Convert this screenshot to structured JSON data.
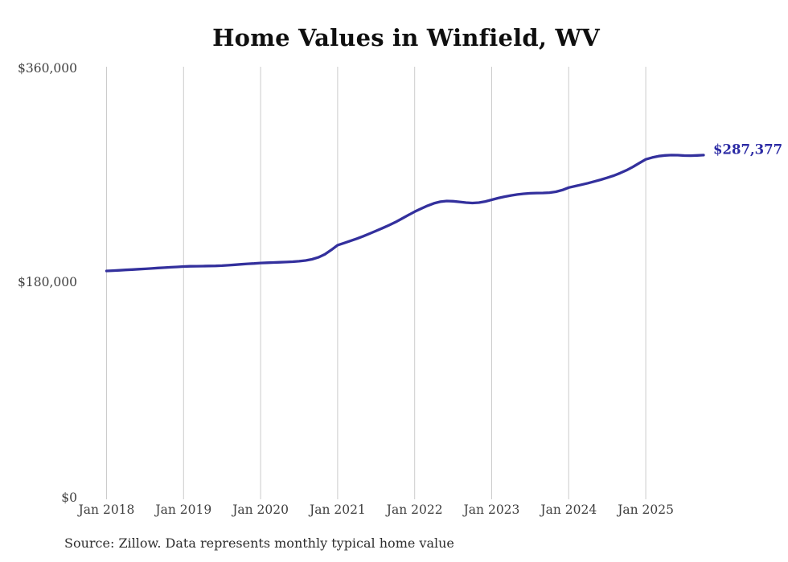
{
  "title": "Home Values in Winfield, WV",
  "source_note": "Source: Zillow. Data represents monthly typical home value",
  "end_label": "$287,377",
  "colors": {
    "line": "#33309d",
    "end_label_text": "#2b2aa4",
    "gridline": "#cccccc",
    "title_text": "#0f0f0f",
    "axis_label_text": "#3f3f3f",
    "source_text": "#2e2e2e",
    "background": "#ffffff"
  },
  "chart_data": {
    "type": "line",
    "title": "Home Values in Winfield, WV",
    "xlabel": "",
    "ylabel": "",
    "ylim": [
      0,
      360000
    ],
    "grid": "vertical-only",
    "legend": "none",
    "frequency": "monthly",
    "x_start": "Jan 2018",
    "x_end": "Oct 2025",
    "x_tick_labels": [
      "Jan 2018",
      "Jan 2019",
      "Jan 2020",
      "Jan 2021",
      "Jan 2022",
      "Jan 2023",
      "Jan 2024",
      "Jan 2025"
    ],
    "y_tick_labels": [
      "$360,000",
      "$180,000",
      "$0"
    ],
    "y_tick_values": [
      360000,
      180000,
      0
    ],
    "final_value": 287377,
    "final_value_label": "$287,377",
    "series": [
      {
        "name": "Typical home value",
        "values": [
          190400,
          190700,
          191000,
          191300,
          191600,
          191900,
          192200,
          192500,
          192900,
          193200,
          193500,
          193800,
          194100,
          194300,
          194400,
          194500,
          194600,
          194700,
          194900,
          195200,
          195600,
          196000,
          196400,
          196700,
          197100,
          197300,
          197500,
          197700,
          197900,
          198200,
          198600,
          199200,
          200200,
          201800,
          204300,
          208000,
          212000,
          213800,
          215600,
          217500,
          219500,
          221700,
          224000,
          226300,
          228700,
          231300,
          234200,
          237100,
          240000,
          242600,
          245000,
          247000,
          248400,
          249000,
          248800,
          248200,
          247600,
          247300,
          247600,
          248600,
          250000,
          251400,
          252600,
          253600,
          254400,
          255000,
          255400,
          255600,
          255700,
          256000,
          256700,
          258100,
          260200,
          261400,
          262600,
          263900,
          265300,
          266800,
          268400,
          270200,
          272300,
          274700,
          277500,
          280700,
          283800,
          285400,
          286500,
          287100,
          287400,
          287300,
          287000,
          286900,
          287100,
          287377
        ]
      }
    ]
  }
}
